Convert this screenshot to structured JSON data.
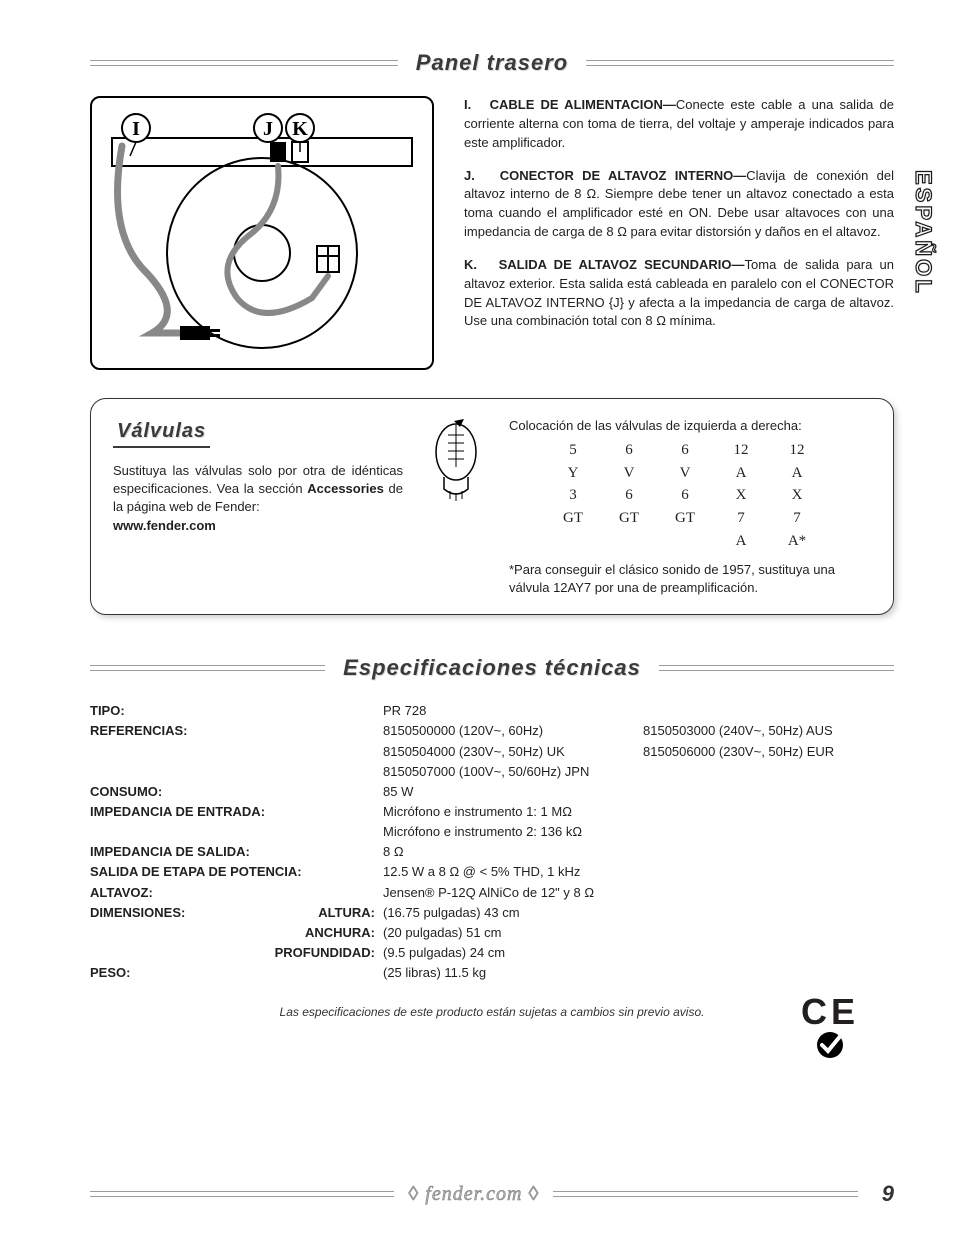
{
  "side_tab": "ESPAÑOL",
  "headings": {
    "rear": "Panel trasero",
    "tubes": "Válvulas",
    "specs": "Especificaciones técnicas"
  },
  "rear_items": [
    {
      "letter": "I.",
      "title": "CABLE DE ALIMENTACION—",
      "body": "Conecte este cable a una salida de corriente alterna con toma de tierra, del voltaje y amperaje indicados para este amplificador."
    },
    {
      "letter": "J.",
      "title": "CONECTOR DE ALTAVOZ INTERNO—",
      "body": "Clavija de conexión del altavoz interno de 8 Ω. Siempre debe tener un altavoz conectado a esta toma cuando el amplificador esté en ON. Debe usar altavoces con una impedancia de carga de 8 Ω para evitar distorsión y daños en el altavoz."
    },
    {
      "letter": "K.",
      "title": "SALIDA DE ALTAVOZ SECUNDARIO—",
      "body": "Toma de salida para un altavoz exterior. Esta salida está cableada en paralelo con el CONECTOR DE ALTAVOZ INTERNO {J} y afecta a la impedancia de carga de altavoz. Use una combinación total con 8 Ω mínima."
    }
  ],
  "tubes_left": {
    "line1": "Sustituya las válvulas solo por otra de idénticas especificaciones. Vea la sección ",
    "bold1": "Accessories",
    "line2": " de la página web de Fender:",
    "url": "www.fender.com"
  },
  "tubes_right": {
    "header": "Colocación de las válvulas de izquierda a derecha:",
    "grid": [
      [
        "5",
        "6",
        "6",
        "12",
        "12"
      ],
      [
        "Y",
        "V",
        "V",
        "A",
        "A"
      ],
      [
        "3",
        "6",
        "6",
        "X",
        "X"
      ],
      [
        "GT",
        "GT",
        "GT",
        "7",
        "7"
      ],
      [
        "",
        "",
        "",
        "A",
        "A*"
      ]
    ],
    "note": "*Para conseguir el clásico sonido de 1957, sustituya una válvula 12AY7 por una de preamplificación."
  },
  "specs": [
    {
      "label": "TIPO:",
      "dim": "",
      "v1": "PR 728",
      "v2": ""
    },
    {
      "label": "REFERENCIAS:",
      "dim": "",
      "v1": "8150500000  (120V~, 60Hz)",
      "v2": "8150503000  (240V~, 50Hz) AUS"
    },
    {
      "label": "",
      "dim": "",
      "v1": "8150504000  (230V~, 50Hz) UK",
      "v2": "8150506000  (230V~, 50Hz) EUR"
    },
    {
      "label": "",
      "dim": "",
      "v1": "8150507000  (100V~, 50/60Hz) JPN",
      "v2": ""
    },
    {
      "label": "CONSUMO:",
      "dim": "",
      "v1": "85 W",
      "v2": ""
    },
    {
      "label": "IMPEDANCIA DE ENTRADA:",
      "dim": "",
      "v1": "Micrófono e instrumento 1: 1 MΩ",
      "v2": ""
    },
    {
      "label": "",
      "dim": "",
      "v1": "Micrófono e instrumento 2: 136 kΩ",
      "v2": ""
    },
    {
      "label": "IMPEDANCIA DE SALIDA:",
      "dim": "",
      "v1": "8 Ω",
      "v2": ""
    },
    {
      "label": "SALIDA DE ETAPA DE POTENCIA:",
      "dim": "",
      "v1": "12.5 W a 8 Ω @ < 5% THD, 1 kHz",
      "v2": ""
    },
    {
      "label": "ALTAVOZ:",
      "dim": "",
      "v1": "Jensen® P-12Q AlNiCo de 12\" y 8 Ω",
      "v2": ""
    },
    {
      "label": "DIMENSIONES:",
      "dim": "ALTURA:",
      "v1": "(16.75 pulgadas)  43 cm",
      "v2": ""
    },
    {
      "label": "",
      "dim": "ANCHURA:",
      "v1": "(20 pulgadas)  51 cm",
      "v2": ""
    },
    {
      "label": "",
      "dim": "PROFUNDIDAD:",
      "v1": "(9.5 pulgadas)  24 cm",
      "v2": ""
    },
    {
      "label": "PESO:",
      "dim": "",
      "v1": "(25 libras)  11.5 kg",
      "v2": ""
    }
  ],
  "spec_note": "Las especificaciones de este producto están sujetas a cambios sin previo aviso.",
  "footer": {
    "text": "◊ fender.com ◊",
    "page": "9"
  },
  "ce_text": "CE",
  "colors": {
    "rule": "#9c9c9c",
    "heading": "#3a3a3a",
    "body": "#231f20"
  }
}
